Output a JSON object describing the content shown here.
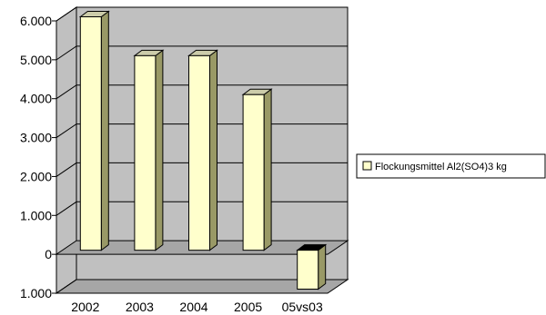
{
  "chart_data": {
    "type": "bar",
    "style": "3d-column",
    "categories": [
      "2002",
      "2003",
      "2004",
      "2005",
      "05vs03"
    ],
    "series": [
      {
        "name": "Flockungsmittel Al2(SO4)3 kg",
        "values": [
          6000,
          5000,
          5000,
          4000,
          -1000
        ]
      }
    ],
    "ylim": [
      -1000,
      6000
    ],
    "yticks": [
      {
        "value": 6000,
        "label": "6.000"
      },
      {
        "value": 5000,
        "label": "5.000"
      },
      {
        "value": 4000,
        "label": "4.000"
      },
      {
        "value": 3000,
        "label": "3.000"
      },
      {
        "value": 2000,
        "label": "2.000"
      },
      {
        "value": 1000,
        "label": "1.000"
      },
      {
        "value": 0,
        "label": "0"
      },
      {
        "value": -1000,
        "label": "1.000"
      }
    ],
    "grid": true,
    "legend_position": "right",
    "colors": {
      "bar_front": "#ffffcc",
      "bar_side": "#999966",
      "bar_top": "#ccccaa",
      "bar_top_negative": "#000000",
      "wall": "#c0c0c0",
      "floor": "#a6a6a6",
      "negative_tick": "#ff0000"
    }
  }
}
